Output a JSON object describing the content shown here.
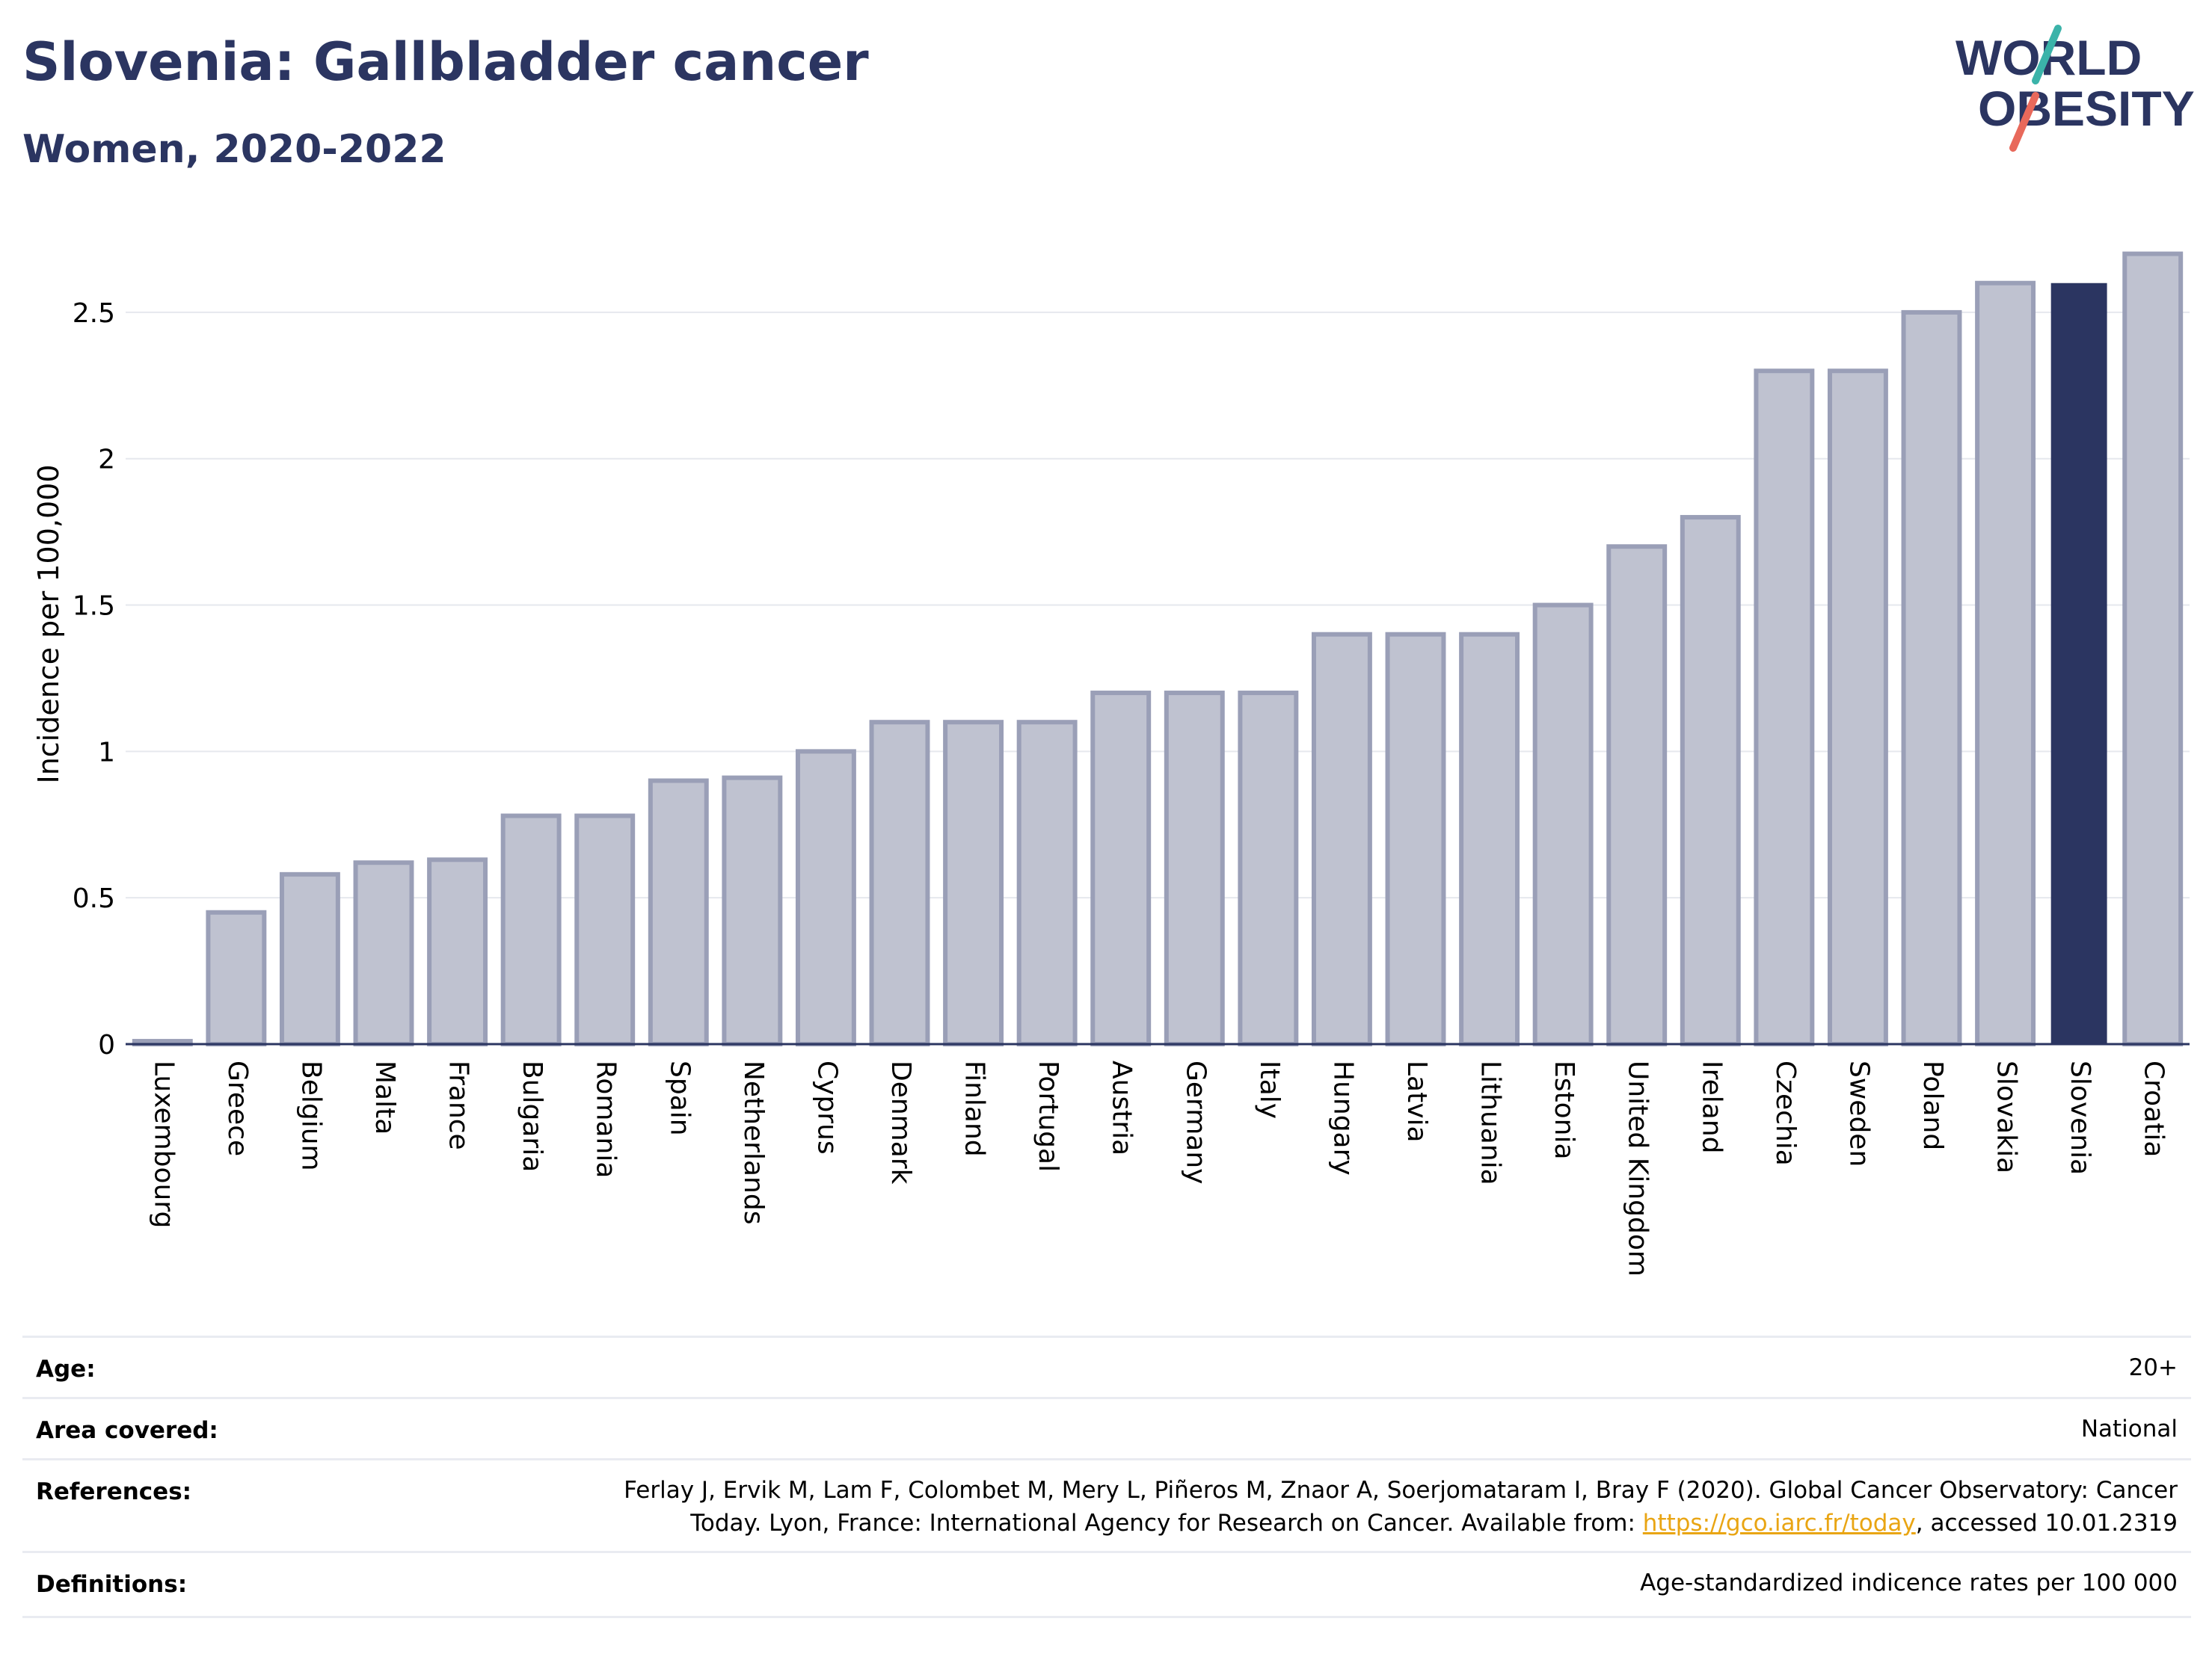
{
  "title": "Slovenia: Gallbladder cancer",
  "subtitle": "Women, 2020-2022",
  "logo": {
    "line1": "WORLD",
    "line2": "OBESITY"
  },
  "chart_data": {
    "type": "bar",
    "ylabel": "Incidence per 100,000",
    "xlabel": "",
    "ylim": [
      0,
      2.75
    ],
    "yticks": [
      0,
      0.5,
      1,
      1.5,
      2,
      2.5
    ],
    "ytick_labels": [
      "0",
      "0.5",
      "1",
      "1.5",
      "2",
      "2.5"
    ],
    "grid": true,
    "highlight": "Slovenia",
    "colors": {
      "bar": "#bfc2d0",
      "bar_border": "#9a9fb7",
      "highlight": "#2b3561",
      "grid": "#e6e8ee",
      "axis": "#2b3561"
    },
    "categories": [
      "Luxembourg",
      "Greece",
      "Belgium",
      "Malta",
      "France",
      "Bulgaria",
      "Romania",
      "Spain",
      "Netherlands",
      "Cyprus",
      "Denmark",
      "Finland",
      "Portugal",
      "Austria",
      "Germany",
      "Italy",
      "Hungary",
      "Latvia",
      "Lithuania",
      "Estonia",
      "United Kingdom",
      "Ireland",
      "Czechia",
      "Sweden",
      "Poland",
      "Slovakia",
      "Slovenia",
      "Croatia"
    ],
    "values": [
      0.01,
      0.45,
      0.58,
      0.62,
      0.63,
      0.78,
      0.78,
      0.9,
      0.91,
      1.0,
      1.1,
      1.1,
      1.1,
      1.2,
      1.2,
      1.2,
      1.4,
      1.4,
      1.4,
      1.5,
      1.7,
      1.8,
      2.3,
      2.3,
      2.5,
      2.6,
      2.6,
      2.7
    ]
  },
  "info": {
    "age_label": "Age:",
    "age_value": "20+",
    "area_label": "Area covered:",
    "area_value": "National",
    "references_label": "References:",
    "references_line1": "Ferlay J, Ervik M, Lam F, Colombet M, Mery L, Piñeros M, Znaor A, Soerjomataram I, Bray F (2020). Global Cancer Observatory: Cancer",
    "references_line2_prefix": "Today. Lyon, France: International Agency for Research on Cancer. Available from: ",
    "references_link": "https://gco.iarc.fr/today",
    "references_line2_suffix": ", accessed 10.01.2319",
    "definitions_label": "Definitions:",
    "definitions_value": "Age-standardized indicence rates per 100 000"
  }
}
